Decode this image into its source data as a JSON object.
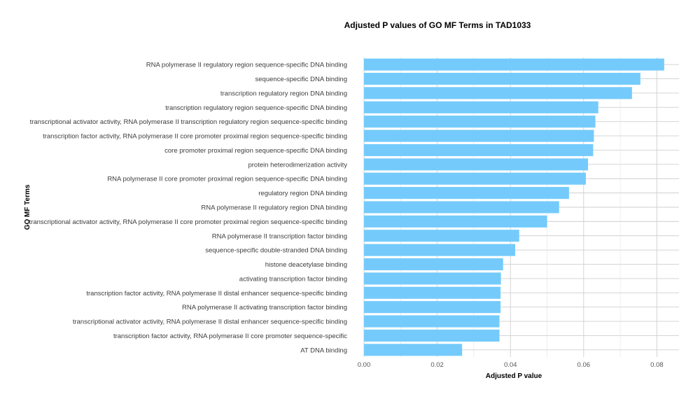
{
  "chart_data": {
    "type": "bar",
    "orientation": "horizontal",
    "title": "Adjusted P values of GO MF Terms in TAD1033",
    "xlabel": "Adjusted P value",
    "ylabel": "GO MF Terms",
    "xlim": [
      0,
      0.086
    ],
    "xticks": [
      0.0,
      0.02,
      0.04,
      0.06,
      0.08
    ],
    "xtick_labels": [
      "0.00",
      "0.02",
      "0.04",
      "0.06",
      "0.08"
    ],
    "grid": true,
    "bar_color": "#74cbfb",
    "categories": [
      "RNA polymerase II regulatory region sequence-specific DNA binding",
      "sequence-specific DNA binding",
      "transcription regulatory region DNA binding",
      "transcription regulatory region sequence-specific DNA binding",
      "transcriptional activator activity, RNA polymerase II transcription regulatory region sequence-specific binding",
      "transcription factor activity, RNA polymerase II core promoter proximal region sequence-specific binding",
      "core promoter proximal region sequence-specific DNA binding",
      "protein heterodimerization activity",
      "RNA polymerase II core promoter proximal region sequence-specific DNA binding",
      "regulatory region DNA binding",
      "RNA polymerase II regulatory region DNA binding",
      "transcriptional activator activity, RNA polymerase II core promoter proximal region sequence-specific binding",
      "RNA polymerase II transcription factor binding",
      "sequence-specific double-stranded DNA binding",
      "histone deacetylase binding",
      "activating transcription factor binding",
      "transcription factor activity, RNA polymerase II distal enhancer sequence-specific binding",
      "RNA polymerase II activating transcription factor binding",
      "transcriptional activator activity, RNA polymerase II distal enhancer sequence-specific binding",
      "transcription factor activity, RNA polymerase II core promoter sequence-specific",
      "AT DNA binding"
    ],
    "values": [
      0.082,
      0.0755,
      0.0732,
      0.064,
      0.0632,
      0.0628,
      0.0626,
      0.0612,
      0.0606,
      0.056,
      0.0533,
      0.05,
      0.0424,
      0.0413,
      0.038,
      0.0374,
      0.0373,
      0.0373,
      0.037,
      0.037,
      0.0268
    ]
  }
}
